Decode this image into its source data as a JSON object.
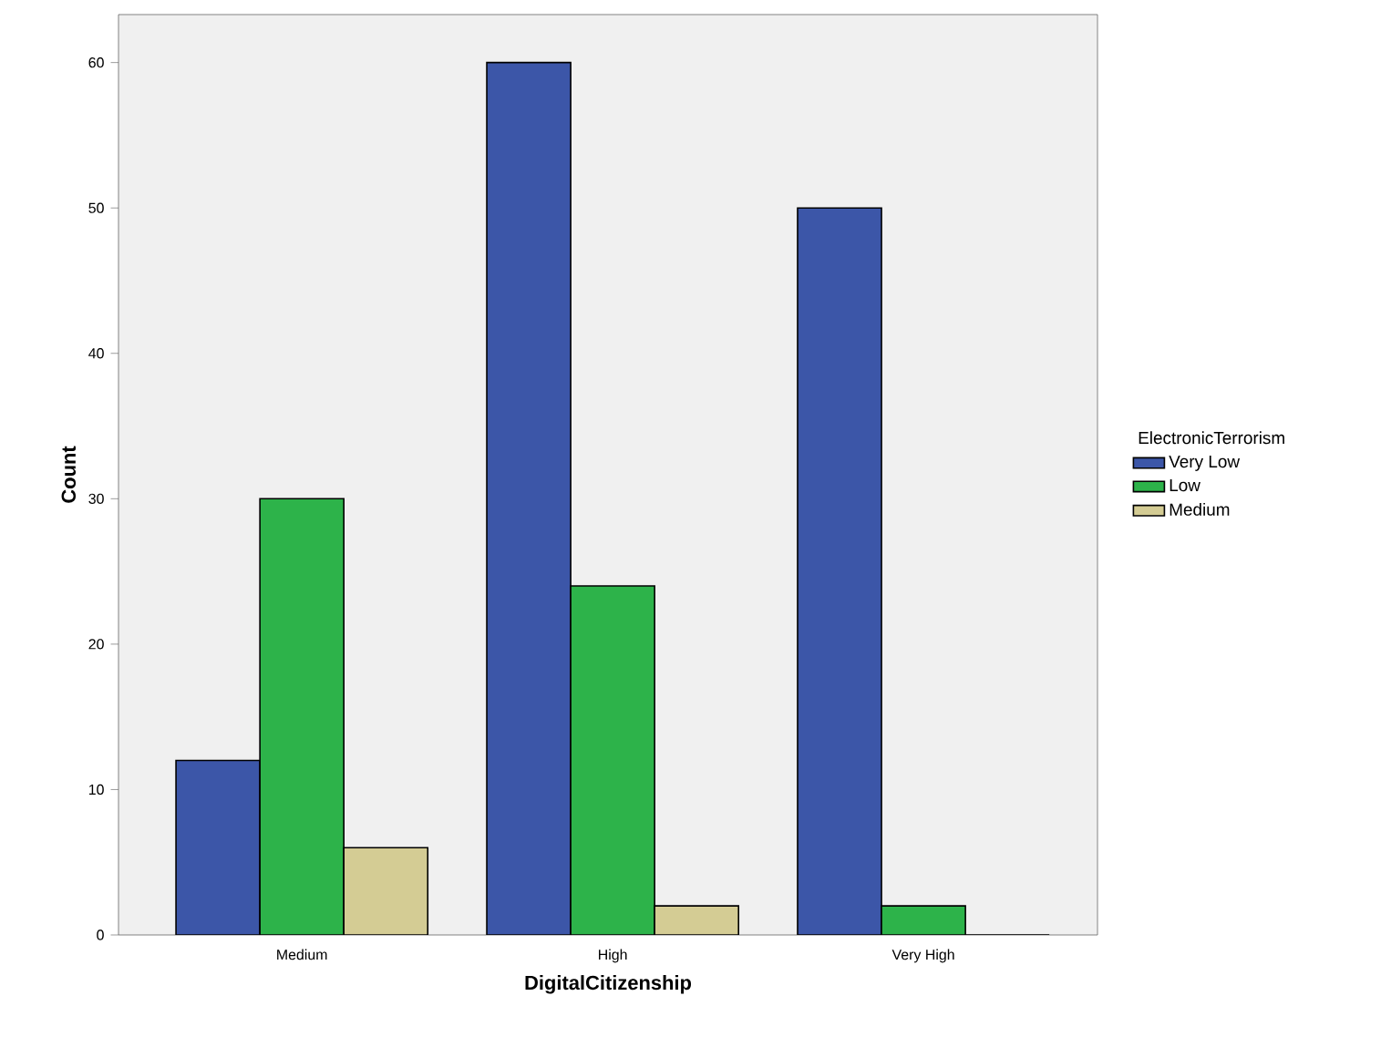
{
  "chart_data": {
    "type": "bar",
    "xlabel": "DigitalCitizenship",
    "ylabel": "Count",
    "legend_title": "ElectronicTerrorism",
    "categories": [
      "Medium",
      "High",
      "Very High"
    ],
    "series": [
      {
        "name": "Very Low",
        "color": "#3c56a8",
        "values": [
          12,
          60,
          50
        ]
      },
      {
        "name": "Low",
        "color": "#2db34a",
        "values": [
          30,
          24,
          2
        ]
      },
      {
        "name": "Medium",
        "color": "#d4cc94",
        "values": [
          6,
          2,
          0
        ]
      }
    ],
    "ylim": [
      0,
      63.3
    ],
    "yticks": [
      0,
      10,
      20,
      30,
      40,
      50,
      60
    ],
    "grid": false,
    "legend": "right"
  }
}
